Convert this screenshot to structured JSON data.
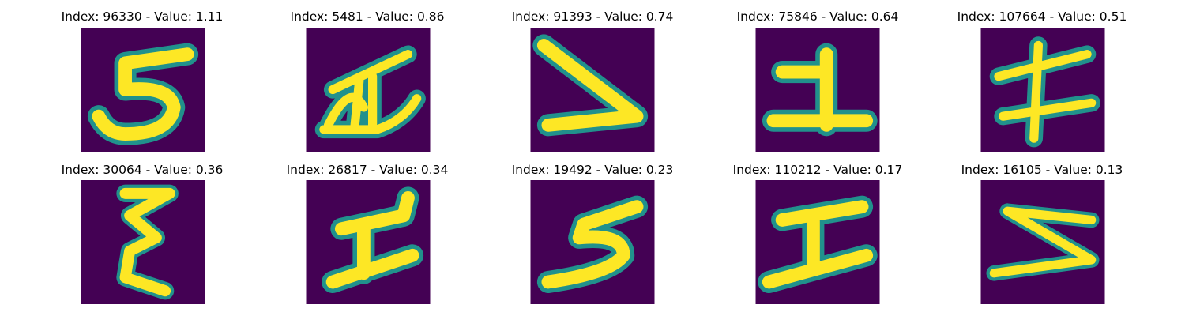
{
  "colors": {
    "background": "#440154",
    "mid_1": "#3b528b",
    "mid_2": "#21918c",
    "mid_3": "#5ec962",
    "bright": "#fde725"
  },
  "tiles": [
    {
      "title": "Index: 96330 - Value: 1.11",
      "glyph": "digit-5-like"
    },
    {
      "title": "Index: 5481 - Value: 0.86",
      "glyph": "scribble-a"
    },
    {
      "title": "Index: 91393 - Value: 0.74",
      "glyph": "angle-shape"
    },
    {
      "title": "Index: 75846 - Value: 0.64",
      "glyph": "digit-1-with-base"
    },
    {
      "title": "Index: 107664 - Value: 0.51",
      "glyph": "double-cross"
    },
    {
      "title": "Index: 30064 - Value: 0.36",
      "glyph": "vertical-zigzag"
    },
    {
      "title": "Index: 26817 - Value: 0.34",
      "glyph": "i-shape"
    },
    {
      "title": "Index: 19492 - Value: 0.23",
      "glyph": "digit-5-like"
    },
    {
      "title": "Index: 110212 - Value: 0.17",
      "glyph": "i-shape-wide"
    },
    {
      "title": "Index: 16105 - Value: 0.13",
      "glyph": "angle-shape-left"
    }
  ]
}
